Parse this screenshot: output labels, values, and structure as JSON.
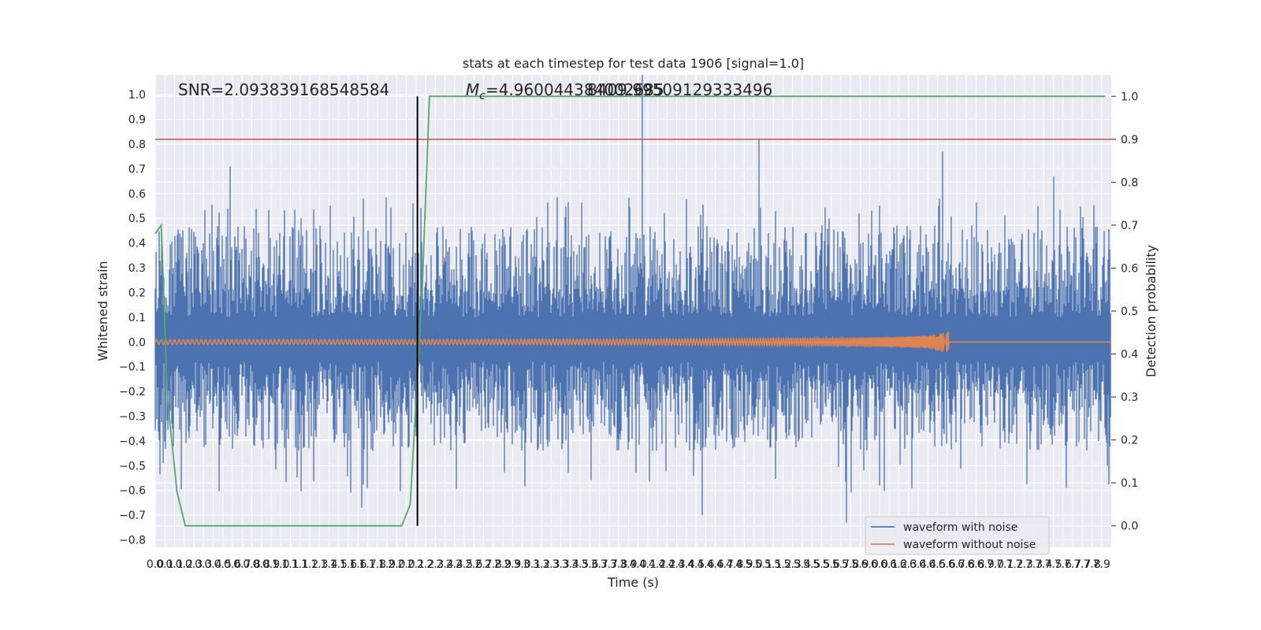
{
  "chart_data": {
    "type": "line",
    "title": "stats at each timestep for test data 1906 [signal=1.0]",
    "xlabel": "Time (s)",
    "ylabel_left": "Whitened strain",
    "ylabel_right": "Detection probability",
    "xlim": [
      0.0,
      7.95
    ],
    "ylim_left": [
      -0.83,
      1.08
    ],
    "ylim_right": [
      -0.05,
      1.05
    ],
    "grid": true,
    "legend_position": "lower-right",
    "x_ticks": [
      "0.0",
      "0.1",
      "0.1",
      "0.2",
      "0.3",
      "0.3",
      "0.4",
      "0.5",
      "0.6",
      "0.7",
      "0.8",
      "0.8",
      "0.9",
      "1.0",
      "1.1",
      "1.1",
      "1.2",
      "1.3",
      "1.4",
      "1.5",
      "1.6",
      "1.6",
      "1.7",
      "1.8",
      "1.9",
      "2.0",
      "2.0",
      "2.1",
      "2.2",
      "2.3",
      "2.4",
      "2.4",
      "2.5",
      "2.6",
      "2.7",
      "2.8",
      "2.9",
      "2.9",
      "3.0",
      "3.1",
      "3.2",
      "3.3",
      "3.3",
      "3.4",
      "3.5",
      "3.6",
      "3.7",
      "3.7",
      "3.8",
      "3.9",
      "4.0",
      "4.1",
      "4.2",
      "4.2",
      "4.3",
      "4.4",
      "4.5",
      "4.6",
      "4.6",
      "4.7",
      "4.8",
      "4.9",
      "5.0",
      "5.1",
      "5.1",
      "5.2",
      "5.3",
      "5.4",
      "5.5",
      "5.5",
      "5.6",
      "5.7",
      "5.8",
      "5.9",
      "6.0",
      "6.0",
      "6.1",
      "6.2",
      "6.3",
      "6.4",
      "6.4",
      "6.5",
      "6.6",
      "6.7",
      "6.8",
      "6.8",
      "6.9",
      "7.0",
      "7.1",
      "7.2",
      "7.3",
      "7.3",
      "7.4",
      "7.5",
      "7.6",
      "7.7",
      "7.7",
      "7.8",
      "7.9"
    ],
    "y_ticks_left": [
      "−0.8",
      "−0.7",
      "−0.6",
      "−0.5",
      "−0.4",
      "−0.3",
      "−0.2",
      "−0.1",
      "0.0",
      "0.1",
      "0.2",
      "0.3",
      "0.4",
      "0.5",
      "0.6",
      "0.7",
      "0.8",
      "0.9",
      "1.0"
    ],
    "y_ticks_right": [
      "0.0",
      "0.1",
      "0.2",
      "0.3",
      "0.4",
      "0.5",
      "0.6",
      "0.7",
      "0.8",
      "0.9",
      "1.0"
    ],
    "annotations": {
      "snr": "SNR=2.093839168548584",
      "mc_prefix": "M",
      "mc_sub": "c",
      "mc_value": "=4.960044384002685",
      "mc_overlap": "8409.99509129333496"
    },
    "vertical_line_x": 2.18,
    "threshold_line_right": 0.9,
    "colors": {
      "noise": "#4c72b0",
      "clean": "#dd8452",
      "probability": "#55a868",
      "threshold": "#c44e52",
      "marker": "#000000",
      "background": "#eaeaf2"
    },
    "series": [
      {
        "name": "waveform with noise",
        "axis": "left",
        "style": "dense noise",
        "typical_envelope": [
          -0.42,
          0.45
        ],
        "peaks": [
          {
            "x": 0.62,
            "y": 0.71
          },
          {
            "x": 4.05,
            "y": 1.08
          },
          {
            "x": 5.02,
            "y": 0.82
          },
          {
            "x": 6.55,
            "y": 0.77
          },
          {
            "x": 7.47,
            "y": 0.67
          },
          {
            "x": 5.75,
            "y": -0.73
          },
          {
            "x": 4.55,
            "y": -0.7
          },
          {
            "x": 1.72,
            "y": -0.67
          }
        ]
      },
      {
        "name": "waveform without noise",
        "axis": "left",
        "style": "chirp",
        "merger_time": 6.6,
        "max_amplitude": 0.04
      },
      {
        "name": "",
        "axis": "right",
        "style": "step",
        "x": [
          0.0,
          0.05,
          0.1,
          0.18,
          0.25,
          2.05,
          2.12,
          2.22,
          2.28,
          7.9
        ],
        "y": [
          0.68,
          0.7,
          0.3,
          0.08,
          0.0,
          0.0,
          0.05,
          0.55,
          1.0,
          1.0
        ]
      }
    ]
  }
}
